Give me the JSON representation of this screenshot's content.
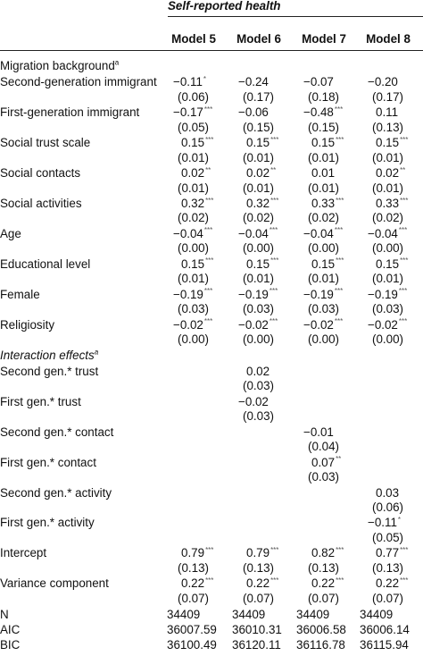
{
  "header": {
    "group_title": "Self-reported health",
    "models": [
      "Model 5",
      "Model 6",
      "Model 7",
      "Model 8"
    ]
  },
  "rows": [
    {
      "kind": "section",
      "label": "Migration background",
      "sup": "a",
      "italic": false
    },
    {
      "kind": "var",
      "label": "Second-generation immigrant",
      "est": [
        [
          "−0.11",
          "*"
        ],
        [
          "−0.24",
          ""
        ],
        [
          "−0.07",
          ""
        ],
        [
          "−0.20",
          ""
        ]
      ],
      "se": [
        "(0.06)",
        "(0.17)",
        "(0.18)",
        "(0.17)"
      ]
    },
    {
      "kind": "var",
      "label": "First-generation immigrant",
      "est": [
        [
          "−0.17",
          "***"
        ],
        [
          "−0.06",
          ""
        ],
        [
          "−0.48",
          "***"
        ],
        [
          "0.11",
          ""
        ]
      ],
      "se": [
        "(0.05)",
        "(0.15)",
        "(0.15)",
        "(0.13)"
      ]
    },
    {
      "kind": "var",
      "label": "Social trust scale",
      "est": [
        [
          "0.15",
          "***"
        ],
        [
          "0.15",
          "***"
        ],
        [
          "0.15",
          "***"
        ],
        [
          "0.15",
          "***"
        ]
      ],
      "se": [
        "(0.01)",
        "(0.01)",
        "(0.01)",
        "(0.01)"
      ]
    },
    {
      "kind": "var",
      "label": "Social contacts",
      "est": [
        [
          "0.02",
          "**"
        ],
        [
          "0.02",
          "**"
        ],
        [
          "0.01",
          ""
        ],
        [
          "0.02",
          "**"
        ]
      ],
      "se": [
        "(0.01)",
        "(0.01)",
        "(0.01)",
        "(0.01)"
      ]
    },
    {
      "kind": "var",
      "label": "Social activities",
      "est": [
        [
          "0.32",
          "***"
        ],
        [
          "0.32",
          "***"
        ],
        [
          "0.33",
          "***"
        ],
        [
          "0.33",
          "***"
        ]
      ],
      "se": [
        "(0.02)",
        "(0.02)",
        "(0.02)",
        "(0.02)"
      ]
    },
    {
      "kind": "var",
      "label": "Age",
      "est": [
        [
          "−0.04",
          "***"
        ],
        [
          "−0.04",
          "***"
        ],
        [
          "−0.04",
          "***"
        ],
        [
          "−0.04",
          "***"
        ]
      ],
      "se": [
        "(0.00)",
        "(0.00)",
        "(0.00)",
        "(0.00)"
      ]
    },
    {
      "kind": "var",
      "label": "Educational level",
      "est": [
        [
          "0.15",
          "***"
        ],
        [
          "0.15",
          "***"
        ],
        [
          "0.15",
          "***"
        ],
        [
          "0.15",
          "***"
        ]
      ],
      "se": [
        "(0.01)",
        "(0.01)",
        "(0.01)",
        "(0.01)"
      ]
    },
    {
      "kind": "var",
      "label": "Female",
      "est": [
        [
          "−0.19",
          "***"
        ],
        [
          "−0.19",
          "***"
        ],
        [
          "−0.19",
          "***"
        ],
        [
          "−0.19",
          "***"
        ]
      ],
      "se": [
        "(0.03)",
        "(0.03)",
        "(0.03)",
        "(0.03)"
      ]
    },
    {
      "kind": "var",
      "label": "Religiosity",
      "est": [
        [
          "−0.02",
          "***"
        ],
        [
          "−0.02",
          "***"
        ],
        [
          "−0.02",
          "***"
        ],
        [
          "−0.02",
          "***"
        ]
      ],
      "se": [
        "(0.00)",
        "(0.00)",
        "(0.00)",
        "(0.00)"
      ]
    },
    {
      "kind": "section",
      "label": "Interaction effects",
      "sup": "a",
      "italic": true
    },
    {
      "kind": "var",
      "label": "Second gen.* trust",
      "est": [
        [
          "",
          ""
        ],
        [
          "0.02",
          ""
        ],
        [
          "",
          ""
        ],
        [
          "",
          ""
        ]
      ],
      "se": [
        "",
        "(0.03)",
        "",
        ""
      ]
    },
    {
      "kind": "var",
      "label": "First gen.* trust",
      "est": [
        [
          "",
          ""
        ],
        [
          "−0.02",
          ""
        ],
        [
          "",
          ""
        ],
        [
          "",
          ""
        ]
      ],
      "se": [
        "",
        "(0.03)",
        "",
        ""
      ]
    },
    {
      "kind": "var",
      "label": "Second gen.* contact",
      "est": [
        [
          "",
          ""
        ],
        [
          "",
          ""
        ],
        [
          "−0.01",
          ""
        ],
        [
          "",
          ""
        ]
      ],
      "se": [
        "",
        "",
        "(0.04)",
        ""
      ]
    },
    {
      "kind": "var",
      "label": "First gen.* contact",
      "est": [
        [
          "",
          ""
        ],
        [
          "",
          ""
        ],
        [
          "0.07",
          "**"
        ],
        [
          "",
          ""
        ]
      ],
      "se": [
        "",
        "",
        "(0.03)",
        ""
      ]
    },
    {
      "kind": "var",
      "label": "Second gen.* activity",
      "est": [
        [
          "",
          ""
        ],
        [
          "",
          ""
        ],
        [
          "",
          ""
        ],
        [
          "0.03",
          ""
        ]
      ],
      "se": [
        "",
        "",
        "",
        "(0.06)"
      ]
    },
    {
      "kind": "var",
      "label": "First gen.* activity",
      "est": [
        [
          "",
          ""
        ],
        [
          "",
          ""
        ],
        [
          "",
          ""
        ],
        [
          "−0.11",
          "*"
        ]
      ],
      "se": [
        "",
        "",
        "",
        "(0.05)"
      ]
    },
    {
      "kind": "var",
      "label": "Intercept",
      "est": [
        [
          "0.79",
          "***"
        ],
        [
          "0.79",
          "***"
        ],
        [
          "0.82",
          "***"
        ],
        [
          "0.77",
          "***"
        ]
      ],
      "se": [
        "(0.13)",
        "(0.13)",
        "(0.13)",
        "(0.13)"
      ]
    },
    {
      "kind": "var",
      "label": "Variance component",
      "est": [
        [
          "0.22",
          "***"
        ],
        [
          "0.22",
          "***"
        ],
        [
          "0.22",
          "***"
        ],
        [
          "0.22",
          "***"
        ]
      ],
      "se": [
        "(0.07)",
        "(0.07)",
        "(0.07)",
        "(0.07)"
      ]
    }
  ],
  "stats": [
    {
      "label": "N",
      "values": [
        "34409",
        "34409",
        "34409",
        "34409"
      ]
    },
    {
      "label": "AIC",
      "values": [
        "36007.59",
        "36010.31",
        "36006.58",
        "36006.14"
      ]
    },
    {
      "label": "BIC",
      "values": [
        "36100.49",
        "36120.11",
        "36116.78",
        "36115.94"
      ]
    }
  ]
}
